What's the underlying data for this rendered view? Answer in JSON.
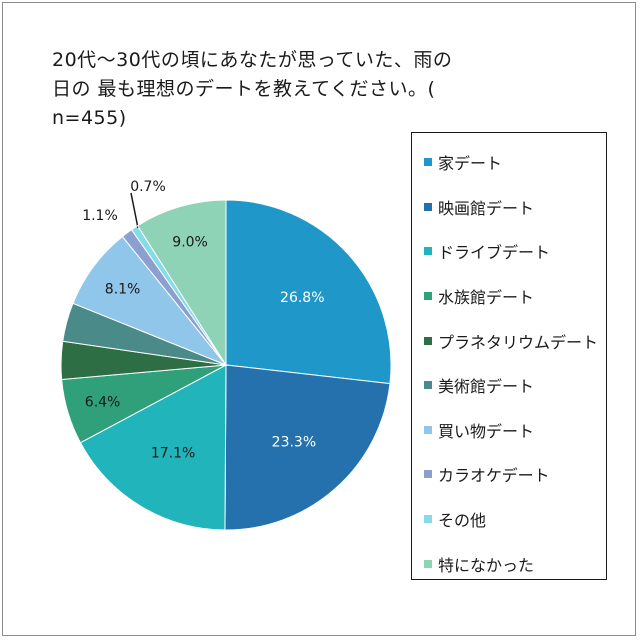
{
  "chart_data": {
    "type": "pie",
    "title_lines": [
      "20代～30代の頃にあなたが思っていた、雨の",
      "日の 最も理想のデートを教えてください。(",
      "n=455)"
    ],
    "legend_position": "right",
    "slices": [
      {
        "label": "家デート",
        "value": 26.8,
        "value_label": "26.8%",
        "color": "#1f97c9",
        "label_color": "#ffffff"
      },
      {
        "label": "映画館デート",
        "value": 23.3,
        "value_label": "23.3%",
        "color": "#2471ad",
        "label_color": "#ffffff"
      },
      {
        "label": "ドライブデート",
        "value": 17.1,
        "value_label": "17.1%",
        "color": "#22b4bb",
        "label_color": "#1a1a1a"
      },
      {
        "label": "水族館デート",
        "value": 6.4,
        "value_label": "6.4%",
        "color": "#2fa07a",
        "label_color": "#1a1a1a"
      },
      {
        "label": "プラネタリウムデート",
        "value": 3.7,
        "value_label": "",
        "color": "#2e6e44",
        "label_color": "#1a1a1a"
      },
      {
        "label": "美術館デート",
        "value": 3.8,
        "value_label": "",
        "color": "#4a8a88",
        "label_color": "#1a1a1a"
      },
      {
        "label": "買い物デート",
        "value": 8.1,
        "value_label": "8.1%",
        "color": "#8fc6ea",
        "label_color": "#1a1a1a"
      },
      {
        "label": "カラオケデート",
        "value": 1.1,
        "value_label": "1.1%",
        "color": "#8b9fd1",
        "label_color": "#1a1a1a"
      },
      {
        "label": "その他",
        "value": 0.7,
        "value_label": "0.7%",
        "color": "#86dbe8",
        "label_color": "#1a1a1a"
      },
      {
        "label": "特になかった",
        "value": 9.0,
        "value_label": "9.0%",
        "color": "#8fd3b6",
        "label_color": "#1a1a1a"
      }
    ]
  }
}
